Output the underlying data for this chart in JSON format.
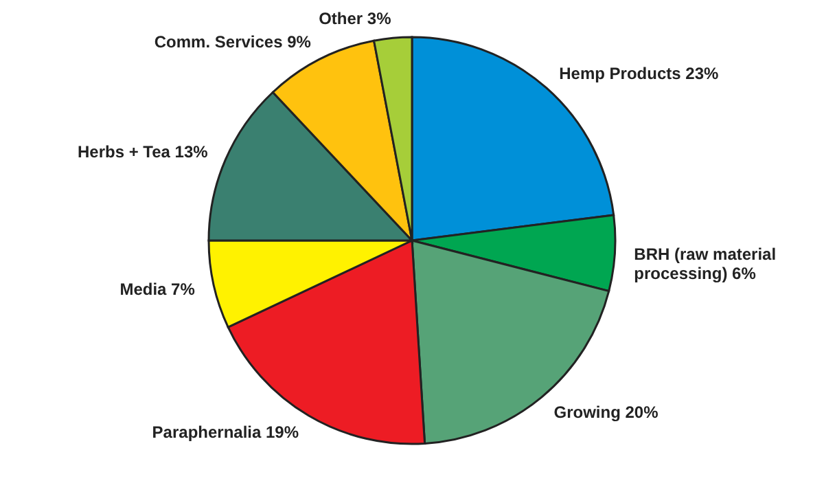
{
  "chart_data": {
    "type": "pie",
    "categories": [
      "Hemp Products",
      "BRH (raw material processing)",
      "Growing",
      "Paraphernalia",
      "Media",
      "Herbs + Tea",
      "Comm. Services",
      "Other"
    ],
    "values": [
      23,
      6,
      20,
      19,
      7,
      13,
      9,
      3
    ],
    "colors": [
      "#0090d8",
      "#00a651",
      "#56a377",
      "#ed1c24",
      "#fff200",
      "#3a8070",
      "#ffc20e",
      "#a6ce39"
    ],
    "value_labels": [
      "23%",
      "6%",
      "20%",
      "19%",
      "7%",
      "13%",
      "9%",
      "3%"
    ]
  }
}
